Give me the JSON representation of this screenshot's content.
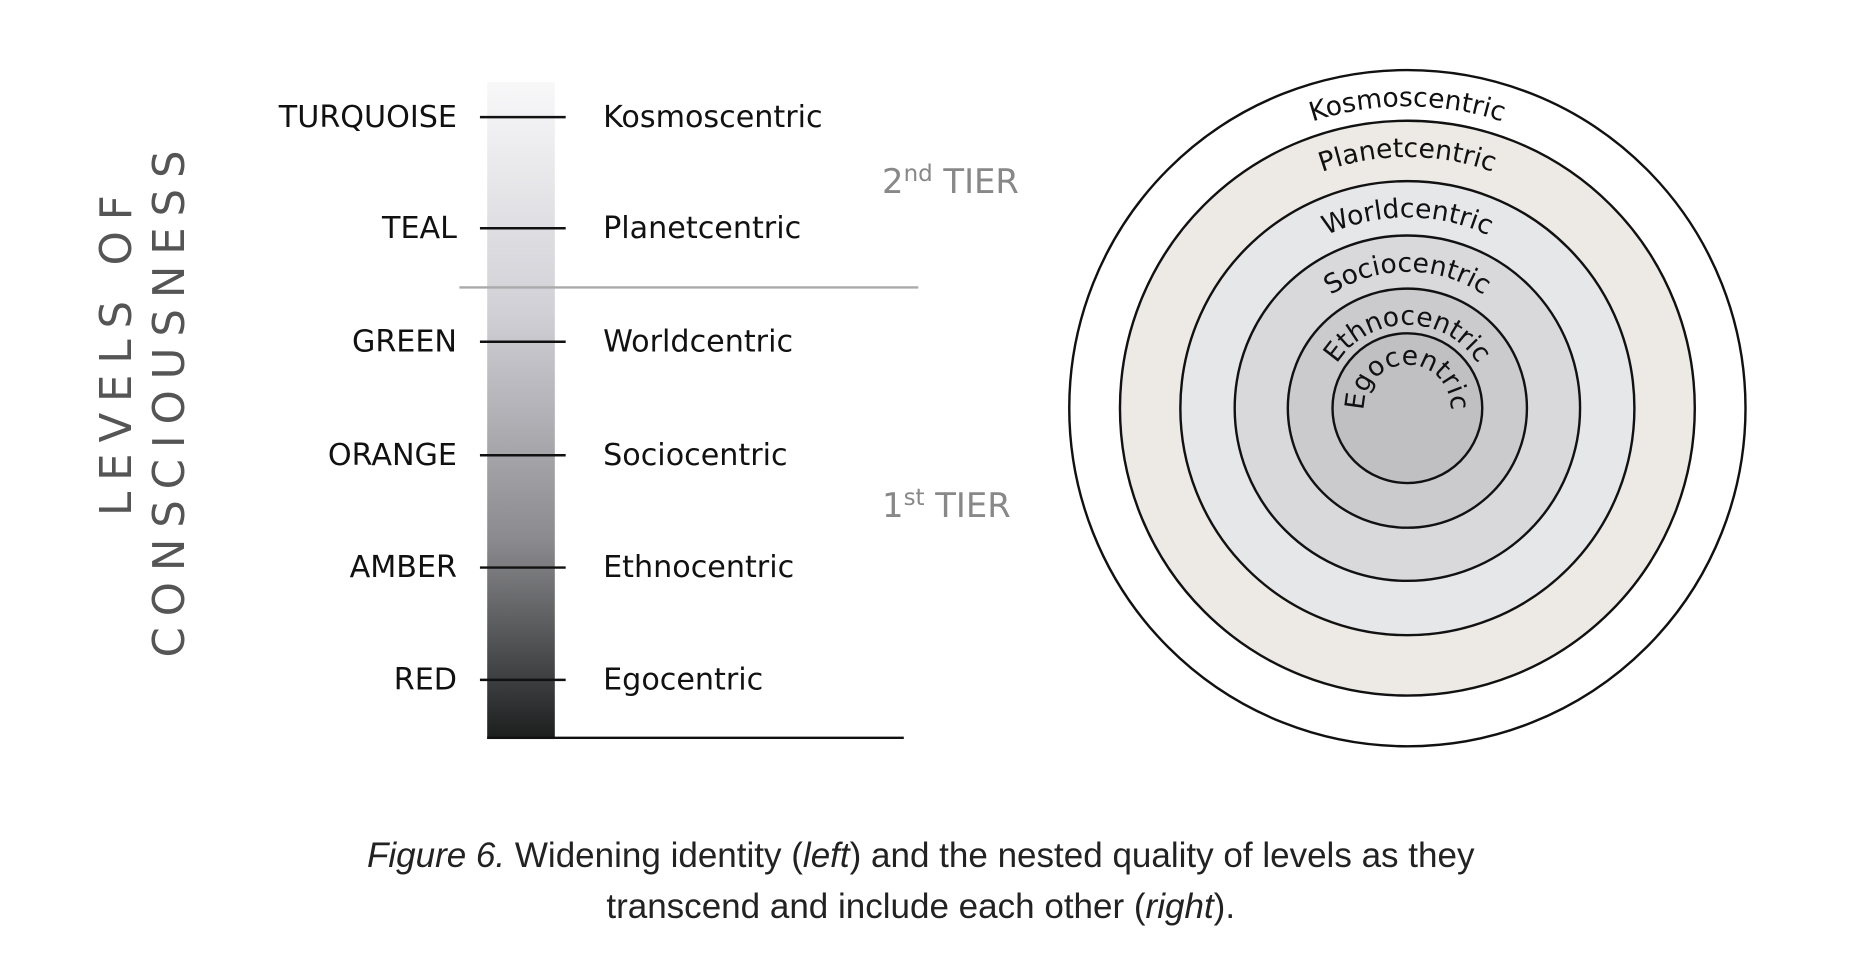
{
  "side_title": [
    "LEVELS OF",
    "CONSCIOUSNESS"
  ],
  "levels": [
    {
      "color": "TURQUOISE",
      "identity": "Kosmoscentric"
    },
    {
      "color": "TEAL",
      "identity": "Planetcentric"
    },
    {
      "color": "GREEN",
      "identity": "Worldcentric"
    },
    {
      "color": "ORANGE",
      "identity": "Sociocentric"
    },
    {
      "color": "AMBER",
      "identity": "Ethnocentric"
    },
    {
      "color": "RED",
      "identity": "Egocentric"
    }
  ],
  "tiers": [
    {
      "number": "2",
      "suffix": "nd",
      "label": "TIER"
    },
    {
      "number": "1",
      "suffix": "st",
      "label": "TIER"
    }
  ],
  "rings": [
    "Kosmoscentric",
    "Planetcentric",
    "Worldcentric",
    "Sociocentric",
    "Ethnocentric",
    "Egocentric"
  ],
  "caption": {
    "figure": "Figure 6.",
    "text1": "Widening identity (",
    "left": "left",
    "text2": ") and the nested quality of levels as they",
    "text3": "transcend and include each other (",
    "right": "right",
    "text4": ")."
  }
}
